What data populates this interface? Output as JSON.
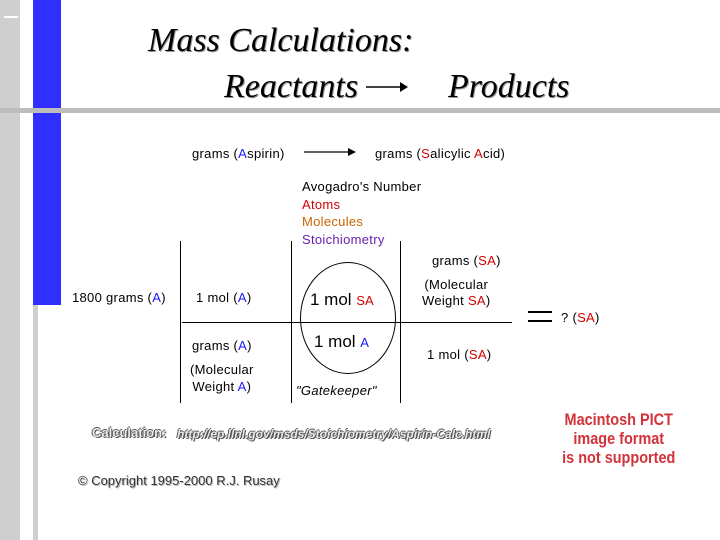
{
  "title": {
    "line1": "Mass Calculations:",
    "line2_left": "Reactants",
    "line2_right": "Products"
  },
  "flow": {
    "left_prefix": "grams (",
    "left_letter": "A",
    "left_rest": "spirin)",
    "right_prefix": "grams (",
    "right_letter1": "S",
    "right_mid": "alicylic ",
    "right_letter2": "A",
    "right_rest": "cid)"
  },
  "legend": {
    "avogadro": "Avogadro's Number",
    "atoms": "Atoms",
    "molecules": "Molecules",
    "stoichiometry": "Stoichiometry"
  },
  "grid": {
    "start_prefix": "1800 grams (",
    "start_letter": "A",
    "start_suffix": ")",
    "col1_top_prefix": "1 mol (",
    "col1_top_letter": "A",
    "col1_top_suffix": ")",
    "col1_bot_prefix": "grams (",
    "col1_bot_letter": "A",
    "col1_bot_suffix": ")",
    "col1_note_line1": "(Molecular",
    "col1_note_line2_prefix": "Weight ",
    "col1_note_line2_letter": "A",
    "col1_note_line2_suffix": ")",
    "col2_top_prefix": "1 mol ",
    "col2_top_unit": "SA",
    "col2_bot_prefix": "1 mol ",
    "col2_bot_unit": "A",
    "gatekeeper": "\"Gatekeeper\"",
    "col3_header_prefix": "grams (",
    "col3_header_letter": "SA",
    "col3_header_suffix": ")",
    "col3_top_line1": "(Molecular",
    "col3_top_line2_prefix": "Weight ",
    "col3_top_line2_letter": "SA",
    "col3_top_line2_suffix": ")",
    "col3_bot_prefix": "1 mol (",
    "col3_bot_letter": "SA",
    "col3_bot_suffix": ")",
    "result_prefix": "? (",
    "result_letter": "SA",
    "result_suffix": ")"
  },
  "calculation": {
    "label": "Calculation:",
    "link": "http://ep.llnl.gov/msds/Stoichiometry/Aspirin-Calc.html"
  },
  "pict_notice": {
    "line1": "Macintosh PICT",
    "line2": "image format",
    "line3": "is not supported"
  },
  "copyright": "© Copyright 1995-2000 R.J. Rusay",
  "colors": {
    "accent_blue": "#1a1aff",
    "accent_red": "#d40000",
    "sidebar_blue": "#2f2fff",
    "sidebar_gray": "#cfcfcf"
  }
}
